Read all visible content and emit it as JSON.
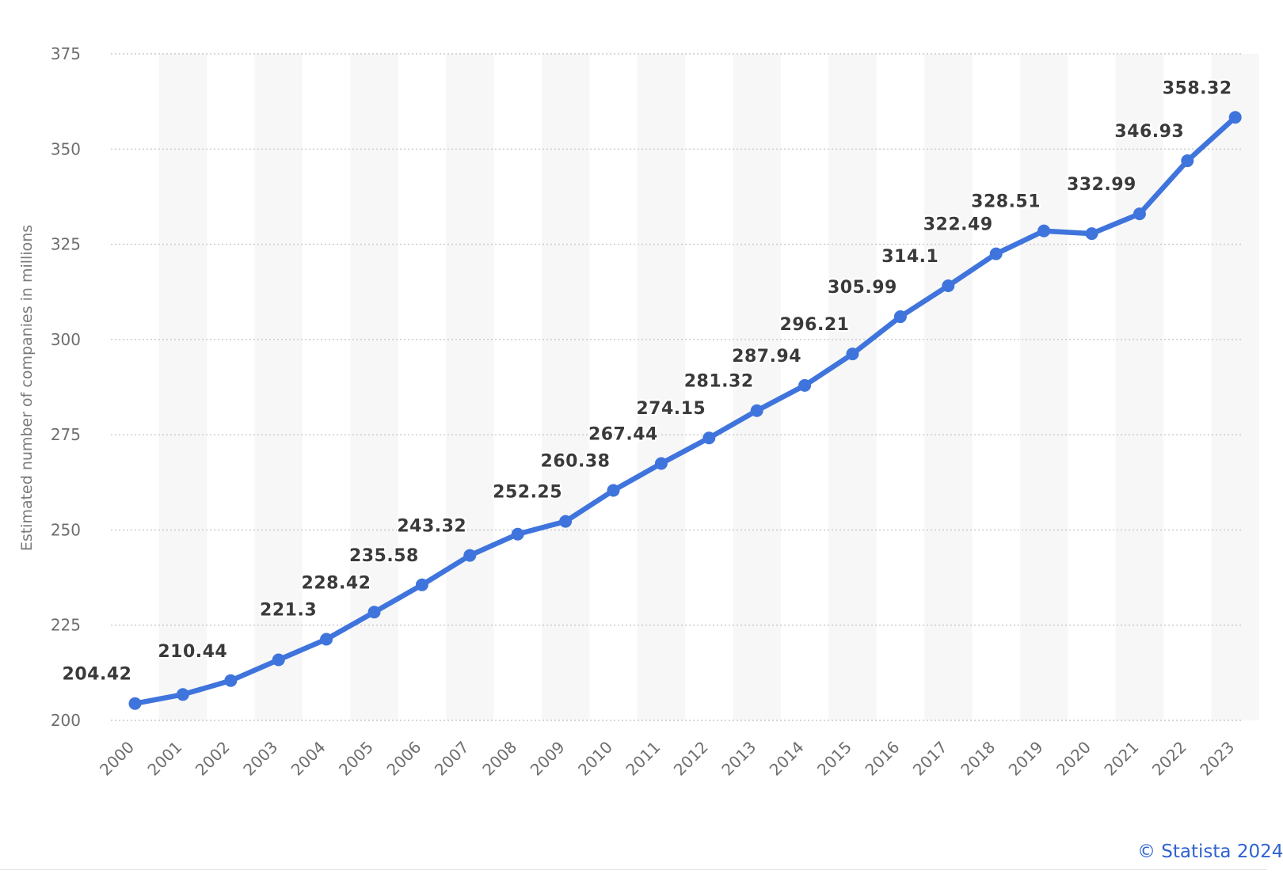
{
  "chart_data": {
    "type": "line",
    "title": "",
    "xlabel": "",
    "ylabel": "Estimated number of companies in millions",
    "ylim": [
      200,
      375
    ],
    "yticks": [
      200,
      225,
      250,
      275,
      300,
      325,
      350,
      375
    ],
    "grid": true,
    "categories": [
      "2000",
      "2001",
      "2002",
      "2003",
      "2004",
      "2005",
      "2006",
      "2007",
      "2008",
      "2009",
      "2010",
      "2011",
      "2012",
      "2013",
      "2014",
      "2015",
      "2016",
      "2017",
      "2018",
      "2019",
      "2020",
      "2021",
      "2022",
      "2023"
    ],
    "series": [
      {
        "values": [
          204.42,
          206.8,
          210.44,
          215.9,
          221.3,
          228.42,
          235.58,
          243.32,
          248.9,
          252.25,
          260.38,
          267.44,
          274.15,
          281.32,
          287.94,
          296.21,
          305.99,
          314.1,
          322.49,
          328.51,
          327.8,
          332.99,
          346.93,
          358.32
        ],
        "labels": [
          "204.42",
          null,
          "210.44",
          null,
          "221.3",
          "228.42",
          "235.58",
          "243.32",
          null,
          "252.25",
          "260.38",
          "267.44",
          "274.15",
          "281.32",
          "287.94",
          "296.21",
          "305.99",
          "314.1",
          "322.49",
          "328.51",
          null,
          "332.99",
          "346.93",
          "358.32"
        ],
        "color": "#3f74dc"
      }
    ]
  },
  "credit": "© Statista 2024"
}
